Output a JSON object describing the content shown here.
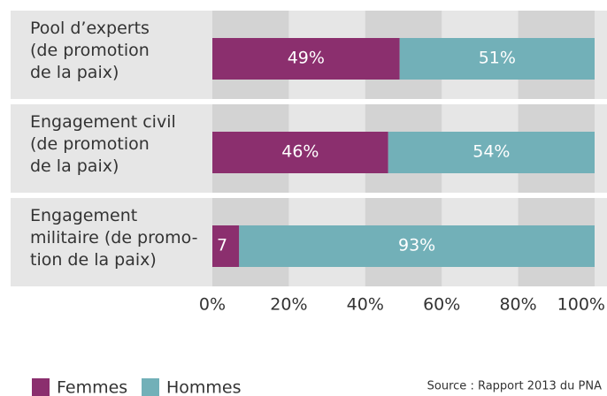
{
  "chart_data": {
    "type": "stacked-barh",
    "categories": [
      "Pool d’experts\n(de promotion\nde la paix)",
      "Engagement civil\n(de promotion\nde la paix)",
      "Engagement\nmilitaire (de promo-\ntion de la paix)"
    ],
    "series": [
      {
        "name": "Femmes",
        "color": "#8b2f6e",
        "values": [
          49,
          46,
          7
        ],
        "value_labels": [
          "49%",
          "46%",
          "7"
        ]
      },
      {
        "name": "Hommes",
        "color": "#72b0b8",
        "values": [
          51,
          54,
          93
        ],
        "value_labels": [
          "51%",
          "54%",
          "93%"
        ]
      }
    ],
    "xlim": [
      0,
      100
    ],
    "xticks": [
      {
        "value": 0,
        "label": "0%"
      },
      {
        "value": 20,
        "label": "20%"
      },
      {
        "value": 40,
        "label": "40%"
      },
      {
        "value": 60,
        "label": "60%"
      },
      {
        "value": 80,
        "label": "80%"
      },
      {
        "value": 100,
        "label": "100%"
      }
    ],
    "grid": true,
    "legend": "bottom-left",
    "source": "Source : Rapport 2013 du PNA"
  }
}
